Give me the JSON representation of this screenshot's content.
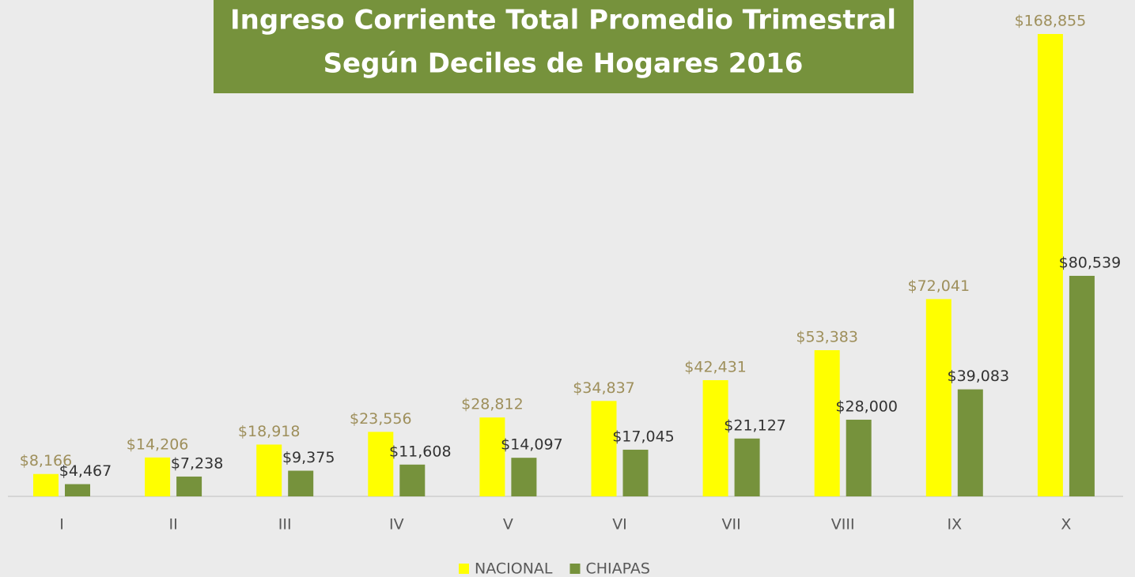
{
  "chart_data": {
    "type": "bar",
    "title": [
      "Ingreso Corriente Total Promedio Trimestral",
      "Según Deciles de Hogares 2016"
    ],
    "categories": [
      "I",
      "II",
      "III",
      "IV",
      "V",
      "VI",
      "VII",
      "VIII",
      "IX",
      "X"
    ],
    "series": [
      {
        "name": "NACIONAL",
        "color": "#ffff00",
        "label_color": "#9e8f5b",
        "values": [
          8166,
          14206,
          18918,
          23556,
          28812,
          34837,
          42431,
          53383,
          72041,
          168855
        ],
        "value_labels": [
          "$8,166",
          "$14,206",
          "$18,918",
          "$23,556",
          "$28,812",
          "$34,837",
          "$42,431",
          "$53,383",
          "$72,041",
          "$168,855"
        ]
      },
      {
        "name": "CHIAPAS",
        "color": "#76923c",
        "label_color": "#333333",
        "values": [
          4467,
          7238,
          9375,
          11608,
          14097,
          17045,
          21127,
          28000,
          39083,
          80539
        ],
        "value_labels": [
          "$4,467",
          "$7,238",
          "$9,375",
          "$11,608",
          "$14,097",
          "$17,045",
          "$21,127",
          "$28,000",
          "$39,083",
          "$80,539"
        ]
      }
    ],
    "title_color": "#76923c",
    "legend": "bottom"
  }
}
